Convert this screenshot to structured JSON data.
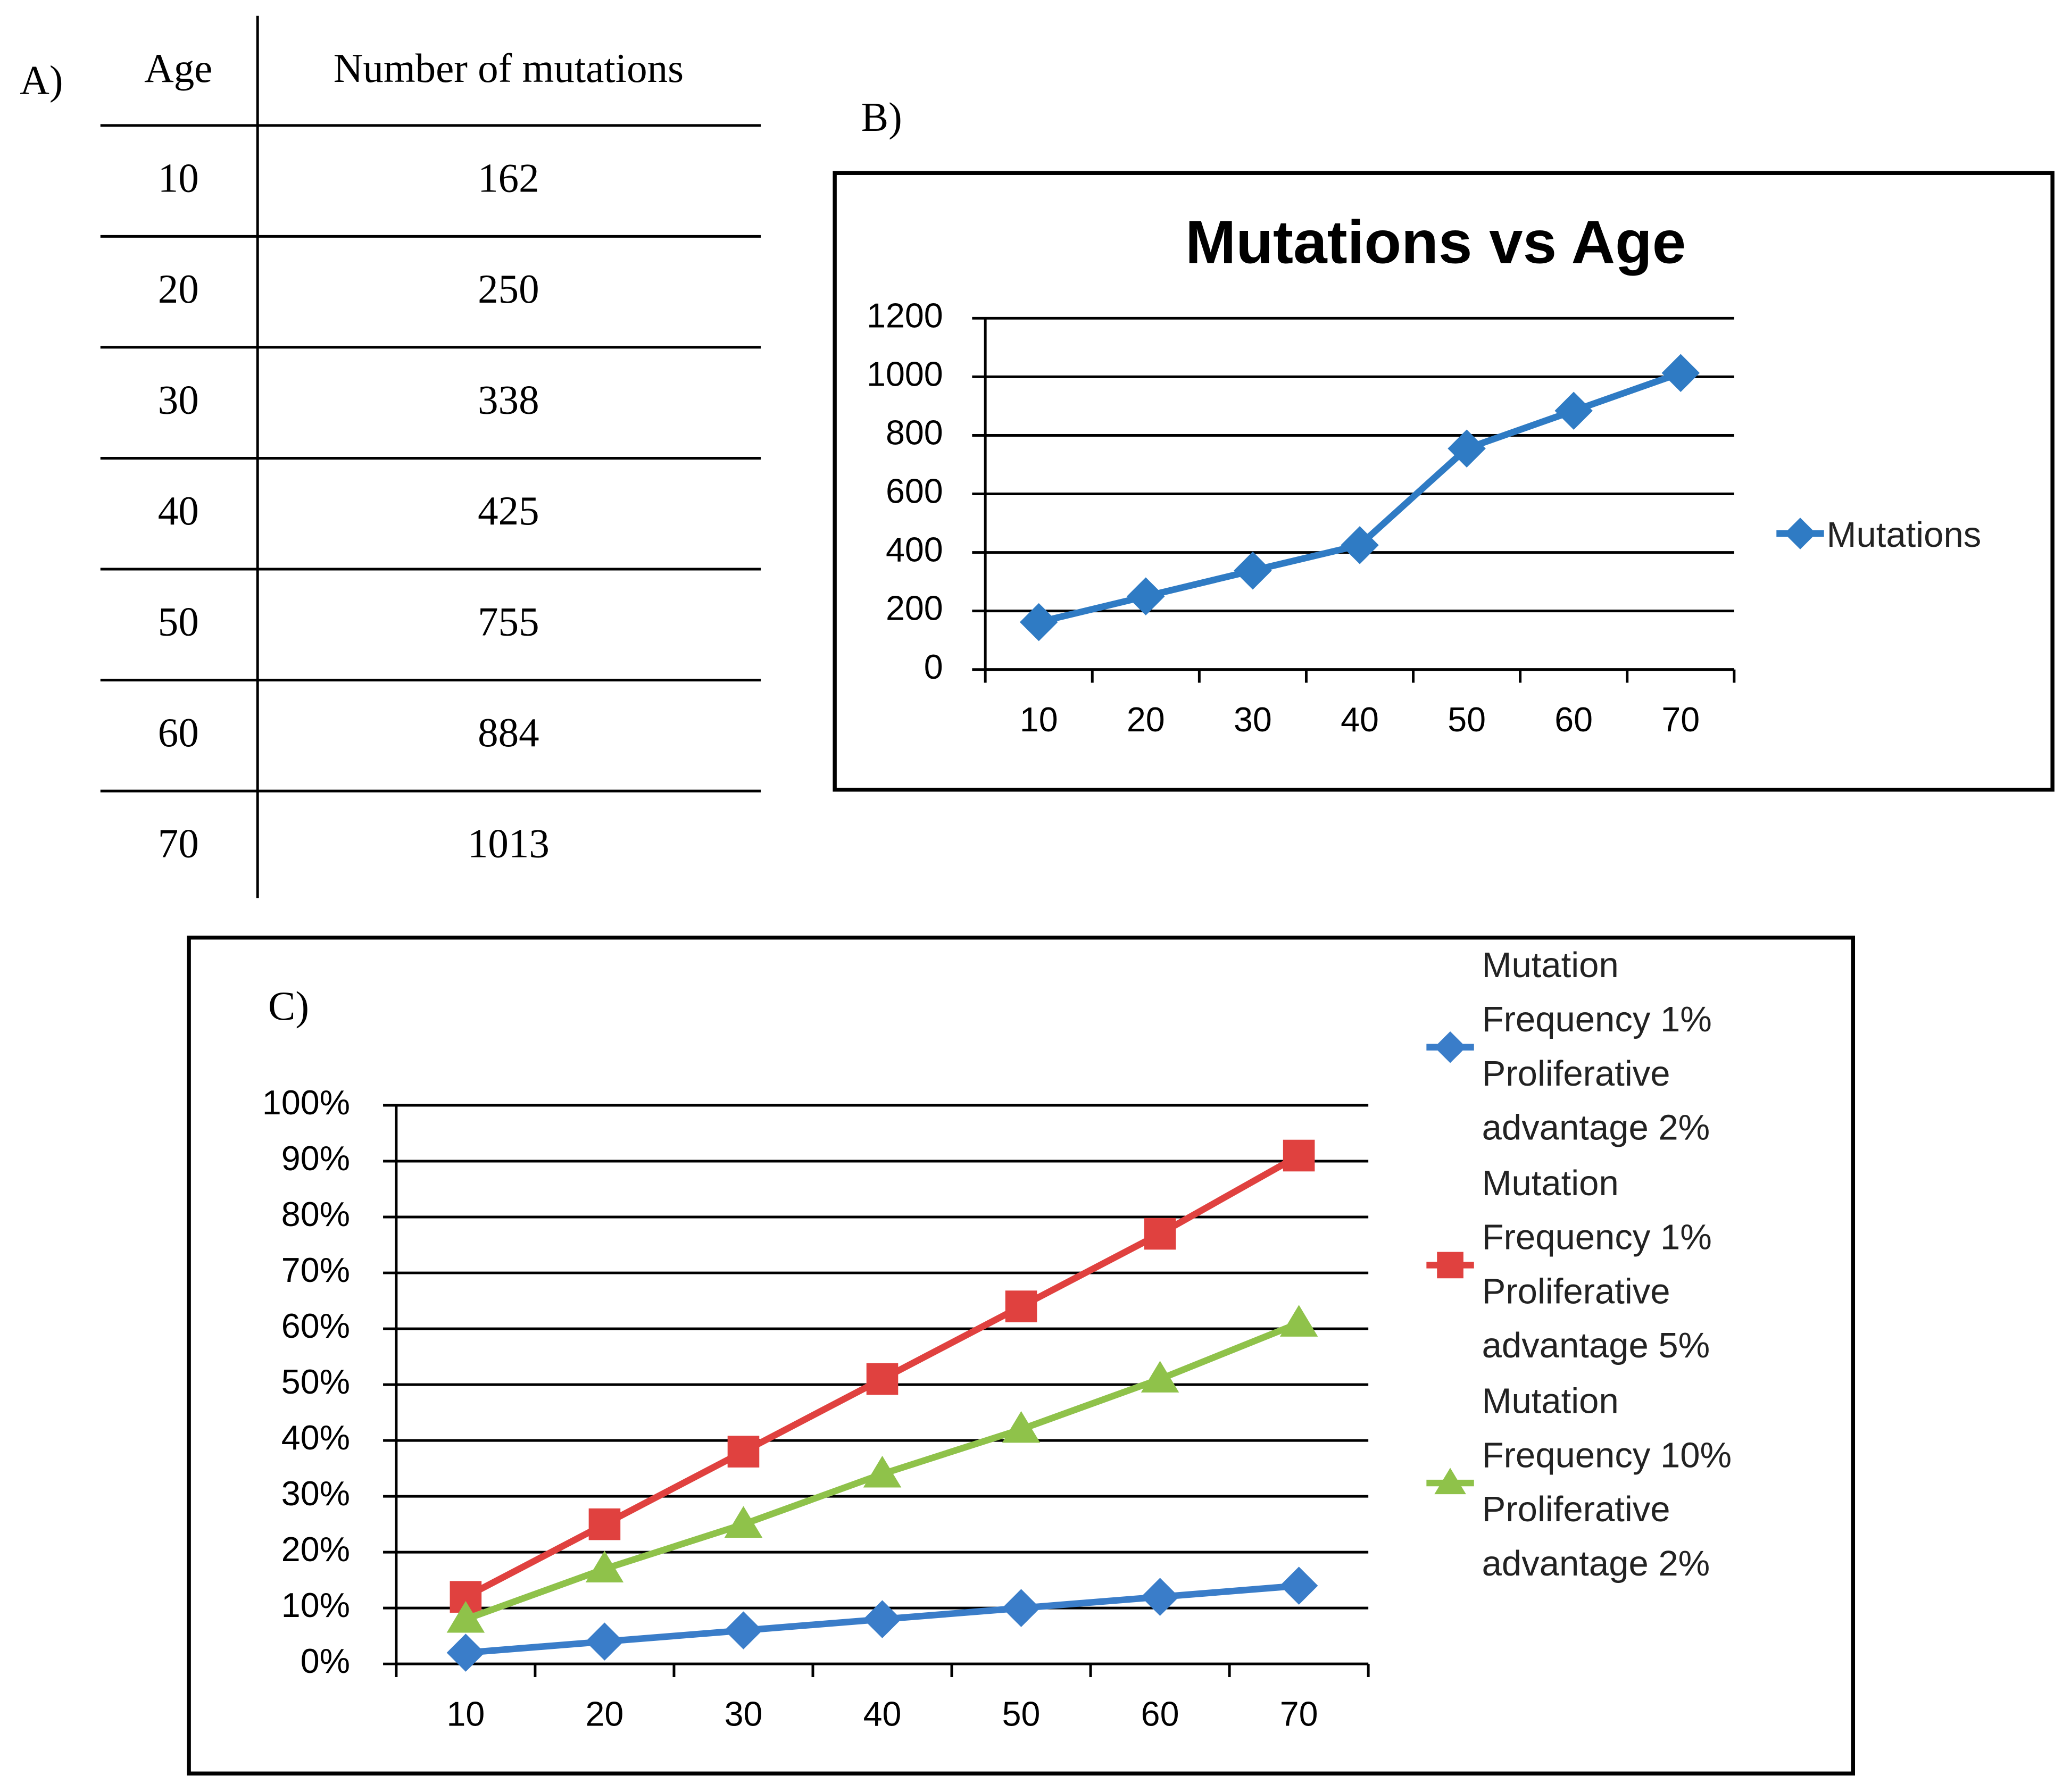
{
  "table": {
    "label": "A)",
    "header": [
      "Age",
      "Number of mutations"
    ],
    "rows": [
      [
        "10",
        "162"
      ],
      [
        "20",
        "250"
      ],
      [
        "30",
        "338"
      ],
      [
        "40",
        "425"
      ],
      [
        "50",
        "755"
      ],
      [
        "60",
        "884"
      ],
      [
        "70",
        "1013"
      ]
    ]
  },
  "chart_data": [
    {
      "type": "line",
      "label": "B)",
      "title": "Mutations vs Age",
      "categories": [
        "10",
        "20",
        "30",
        "40",
        "50",
        "60",
        "70"
      ],
      "series": [
        {
          "name": "Mutations",
          "color": "#2f7bc4",
          "marker": "diamond",
          "values": [
            162,
            250,
            338,
            425,
            755,
            884,
            1013
          ]
        }
      ],
      "ylim": [
        0,
        1200
      ],
      "yticks": [
        0,
        200,
        400,
        600,
        800,
        1000,
        1200
      ],
      "grid": true,
      "legend": "right"
    },
    {
      "type": "line",
      "label": "C)",
      "categories": [
        "10",
        "20",
        "30",
        "40",
        "50",
        "60",
        "70"
      ],
      "series": [
        {
          "name": "Mutation Frequency 1% Proliferative advantage 2%",
          "color": "#3a7dc9",
          "marker": "diamond",
          "values": [
            2,
            4,
            6,
            8,
            10,
            12,
            14
          ]
        },
        {
          "name": "Mutation Frequency 1% Proliferative advantage 5%",
          "color": "#e0413f",
          "marker": "square",
          "values": [
            12,
            25,
            38,
            51,
            64,
            77,
            91
          ]
        },
        {
          "name": "Mutation Frequency 10% Proliferative advantage 2%",
          "color": "#8fc24a",
          "marker": "triangle",
          "values": [
            8,
            17,
            25,
            34,
            42,
            51,
            61
          ]
        }
      ],
      "ylim": [
        0,
        100
      ],
      "yticks": [
        {
          "value": 0,
          "label": "0%"
        },
        {
          "value": 10,
          "label": "10%"
        },
        {
          "value": 20,
          "label": "20%"
        },
        {
          "value": 30,
          "label": "30%"
        },
        {
          "value": 40,
          "label": "40%"
        },
        {
          "value": 50,
          "label": "50%"
        },
        {
          "value": 60,
          "label": "60%"
        },
        {
          "value": 70,
          "label": "70%"
        },
        {
          "value": 80,
          "label": "80%"
        },
        {
          "value": 90,
          "label": "90%"
        },
        {
          "value": 100,
          "label": "100%"
        }
      ],
      "grid": true,
      "legend": "right"
    }
  ]
}
